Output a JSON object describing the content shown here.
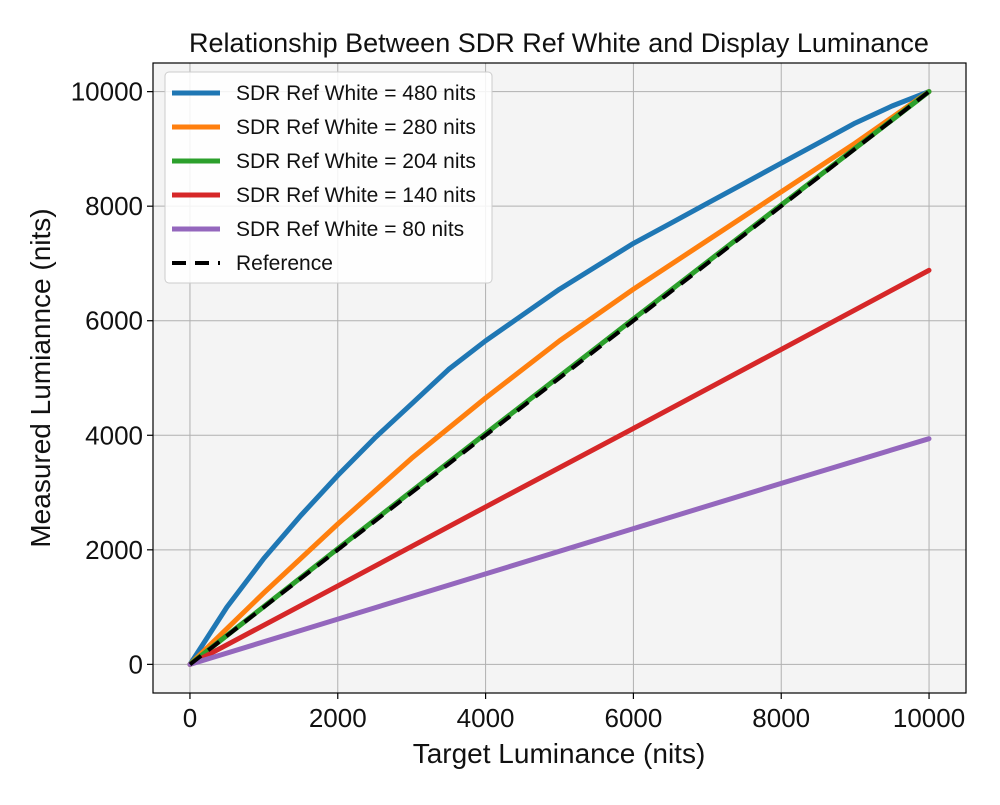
{
  "chart_data": {
    "type": "line",
    "title": "Relationship Between SDR Ref White and Display Luminance",
    "xlabel": "Target Luminance (nits)",
    "ylabel": "Measured Lumiannce (nits)",
    "xlim": [
      -500,
      10500
    ],
    "ylim": [
      -500,
      10500
    ],
    "xticks": [
      0,
      2000,
      4000,
      6000,
      8000,
      10000
    ],
    "yticks": [
      0,
      2000,
      4000,
      6000,
      8000,
      10000
    ],
    "xtick_labels": [
      "0",
      "2000",
      "4000",
      "6000",
      "8000",
      "10000"
    ],
    "ytick_labels": [
      "0",
      "2000",
      "4000",
      "6000",
      "8000",
      "10000"
    ],
    "grid": true,
    "legend_position": "top-left",
    "background": "#f4f4f4",
    "series": [
      {
        "name": "SDR Ref White = 480 nits",
        "color": "#1f77b4",
        "style": "solid",
        "x": [
          0,
          500,
          1000,
          1500,
          2000,
          2500,
          3000,
          3500,
          4000,
          4500,
          5000,
          5500,
          6000,
          6500,
          7000,
          7500,
          8000,
          8500,
          9000,
          9500,
          10000
        ],
        "y": [
          0,
          1000,
          1850,
          2600,
          3300,
          3950,
          4550,
          5150,
          5650,
          6100,
          6550,
          6950,
          7350,
          7700,
          8050,
          8400,
          8750,
          9100,
          9450,
          9750,
          10000
        ]
      },
      {
        "name": "SDR Ref White = 280 nits",
        "color": "#ff7f0e",
        "style": "solid",
        "x": [
          0,
          1000,
          2000,
          3000,
          4000,
          5000,
          6000,
          7000,
          8000,
          9000,
          10000
        ],
        "y": [
          0,
          1250,
          2450,
          3600,
          4650,
          5650,
          6550,
          7400,
          8250,
          9100,
          10000
        ]
      },
      {
        "name": "SDR Ref White = 204 nits",
        "color": "#2ca02c",
        "style": "solid",
        "x": [
          0,
          2000,
          4000,
          6000,
          8000,
          10000
        ],
        "y": [
          0,
          2020,
          4030,
          6030,
          8020,
          10000
        ]
      },
      {
        "name": "SDR Ref White = 140 nits",
        "color": "#d62728",
        "style": "solid",
        "x": [
          0,
          2000,
          4000,
          6000,
          8000,
          10000
        ],
        "y": [
          0,
          1370,
          2750,
          4120,
          5500,
          6880
        ]
      },
      {
        "name": "SDR Ref White = 80 nits",
        "color": "#9467bd",
        "style": "solid",
        "x": [
          0,
          2000,
          4000,
          6000,
          8000,
          10000
        ],
        "y": [
          0,
          790,
          1580,
          2370,
          3160,
          3940
        ]
      },
      {
        "name": "Reference",
        "color": "#000000",
        "style": "dashed",
        "x": [
          0,
          10000
        ],
        "y": [
          0,
          10000
        ]
      }
    ]
  }
}
